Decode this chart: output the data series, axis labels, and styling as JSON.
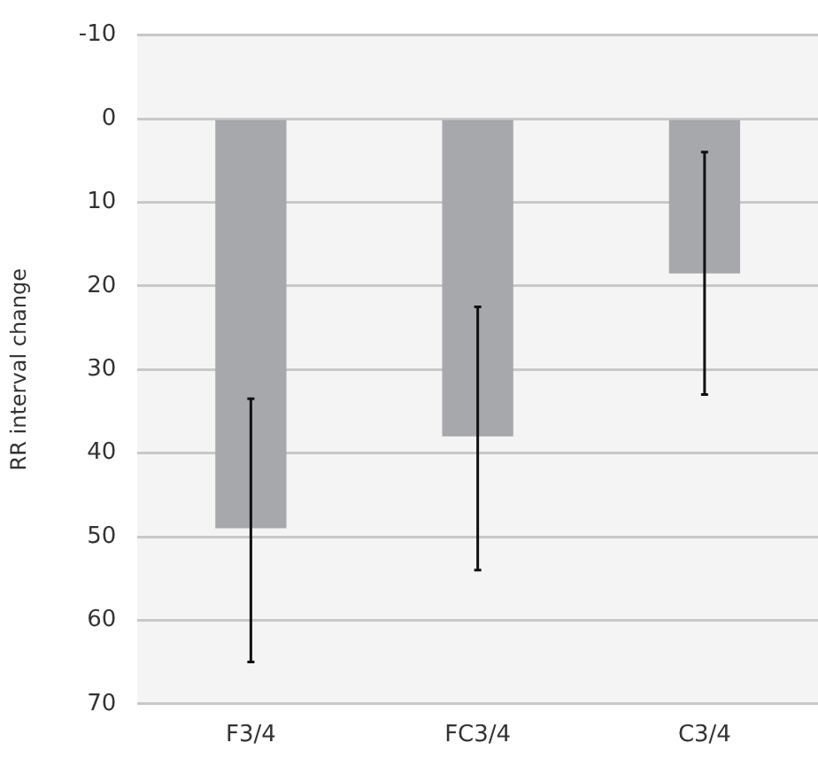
{
  "chart_data": {
    "type": "bar",
    "ylabel": "RR interval change",
    "categories": [
      "F3/4",
      "FC3/4",
      "C3/4"
    ],
    "values": [
      49,
      38,
      18.5
    ],
    "color": "#a7a8ac",
    "errors": [
      [
        33.5,
        65
      ],
      [
        22.5,
        54
      ],
      [
        4,
        33
      ]
    ],
    "ylim": [
      70,
      -10
    ],
    "yticks": [
      -10,
      0,
      10,
      20,
      30,
      40,
      50,
      60,
      70
    ],
    "grid": "y"
  }
}
